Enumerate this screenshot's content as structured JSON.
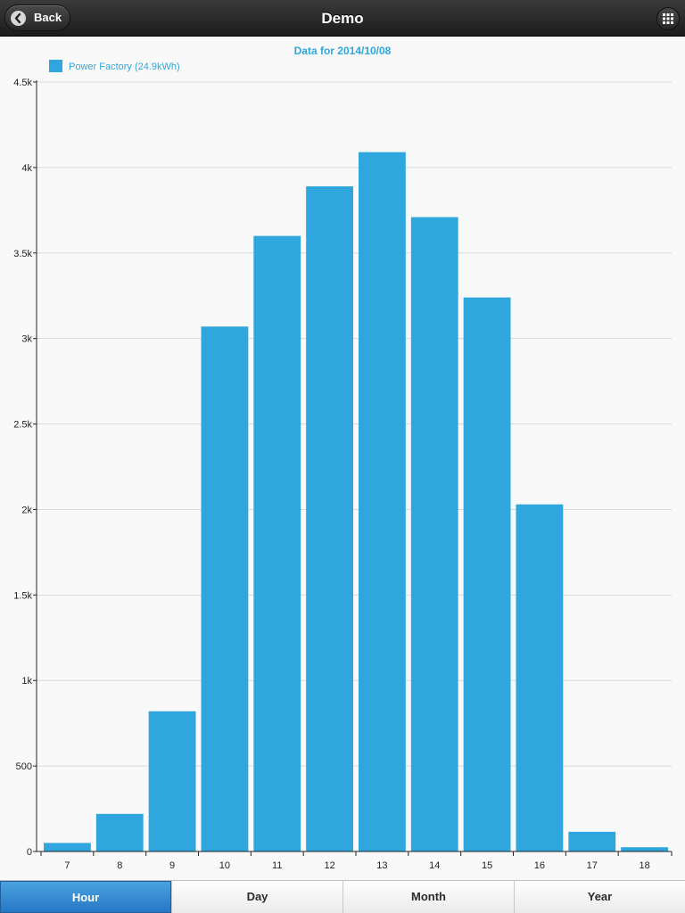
{
  "header": {
    "title": "Demo",
    "back_label": "Back",
    "back_icon": "chevron-left-icon",
    "menu_icon": "grid-icon"
  },
  "chart_data": {
    "type": "bar",
    "title": "Data for 2014/10/08",
    "xlabel": "",
    "ylabel": "",
    "categories": [
      "7",
      "8",
      "9",
      "10",
      "11",
      "12",
      "13",
      "14",
      "15",
      "16",
      "17",
      "18"
    ],
    "series": [
      {
        "name": "Power Factory (24.9kWh)",
        "color": "#30a6de",
        "values": [
          50,
          220,
          820,
          3070,
          3600,
          3890,
          4090,
          3710,
          3240,
          2030,
          115,
          25
        ]
      }
    ],
    "ylim": [
      0,
      4500
    ],
    "yticks": [
      0,
      500,
      1000,
      1500,
      2000,
      2500,
      3000,
      3500,
      4000,
      4500
    ],
    "ytick_labels": [
      "0",
      "500",
      "1k",
      "1.5k",
      "2k",
      "2.5k",
      "3k",
      "3.5k",
      "4k",
      "4.5k"
    ],
    "grid": true,
    "legend": "top-left"
  },
  "colors": {
    "accent": "#30a6de",
    "title": "#30a6de",
    "grid": "#d9d9d9"
  },
  "tabs": [
    {
      "label": "Hour",
      "active": true
    },
    {
      "label": "Day",
      "active": false
    },
    {
      "label": "Month",
      "active": false
    },
    {
      "label": "Year",
      "active": false
    }
  ]
}
